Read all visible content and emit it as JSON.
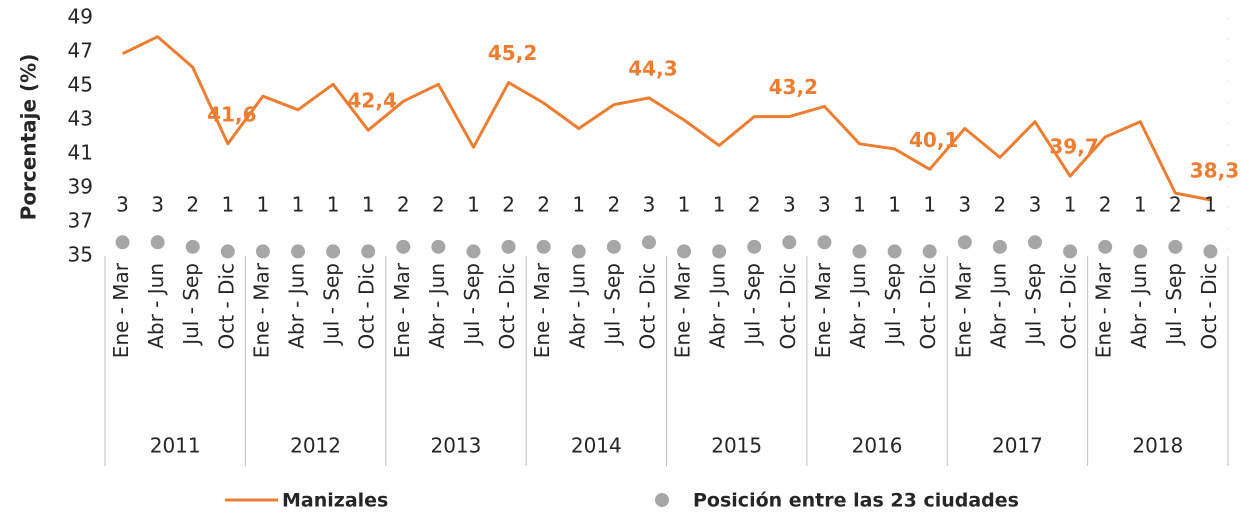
{
  "chart_data": {
    "type": "line",
    "y_label": "Porcentaje (%)",
    "categories": [
      "Ene - Mar",
      "Abr - Jun",
      "Jul - Sep",
      "Oct - Dic",
      "Ene - Mar",
      "Abr - Jun",
      "Jul - Sep",
      "Oct - Dic",
      "Ene - Mar",
      "Abr - Jun",
      "Jul - Sep",
      "Oct - Dic",
      "Ene - Mar",
      "Abr - Jun",
      "Jul - Sep",
      "Oct - Dic",
      "Ene - Mar",
      "Abr - Jun",
      "Jul - Sep",
      "Oct - Dic",
      "Ene - Mar",
      "Abr - Jun",
      "Jul - Sep",
      "Oct - Dic",
      "Ene - Mar",
      "Abr - Jun",
      "Jul - Sep",
      "Oct - Dic",
      "Ene - Mar",
      "Abr - Jun",
      "Jul - Sep",
      "Oct - Dic"
    ],
    "groups": [
      "2011",
      "2012",
      "2013",
      "2014",
      "2015",
      "2016",
      "2017",
      "2018"
    ],
    "series": [
      {
        "name": "Manizales",
        "color": "#ed7d31",
        "values": [
          46.9,
          47.9,
          46.1,
          41.6,
          44.4,
          43.6,
          45.1,
          42.4,
          44.1,
          45.1,
          41.4,
          45.2,
          44.0,
          42.5,
          43.9,
          44.3,
          43.0,
          41.5,
          43.2,
          43.2,
          43.8,
          41.6,
          41.3,
          40.1,
          42.5,
          40.8,
          42.9,
          39.7,
          42.0,
          42.9,
          38.7,
          38.3
        ],
        "value_labels": [
          null,
          null,
          null,
          "41,6",
          null,
          null,
          null,
          "42,4",
          null,
          null,
          null,
          "45,2",
          null,
          null,
          null,
          "44,3",
          null,
          null,
          null,
          "43,2",
          null,
          null,
          null,
          "40,1",
          null,
          null,
          null,
          "39,7",
          null,
          null,
          null,
          "38,3"
        ]
      },
      {
        "name": "Posición entre las 23 ciudades",
        "color": "#a6a6a6",
        "type": "scatter",
        "axis": "y2",
        "values": [
          3,
          3,
          2,
          1,
          1,
          1,
          1,
          1,
          2,
          2,
          1,
          2,
          2,
          1,
          2,
          3,
          1,
          1,
          2,
          3,
          3,
          1,
          1,
          1,
          3,
          2,
          3,
          1,
          2,
          1,
          2,
          1
        ]
      }
    ],
    "ylim": [
      35,
      49
    ],
    "yticks": [
      35,
      37,
      39,
      41,
      43,
      45,
      47,
      49
    ],
    "y2lim": [
      0,
      52
    ],
    "grid": false
  }
}
